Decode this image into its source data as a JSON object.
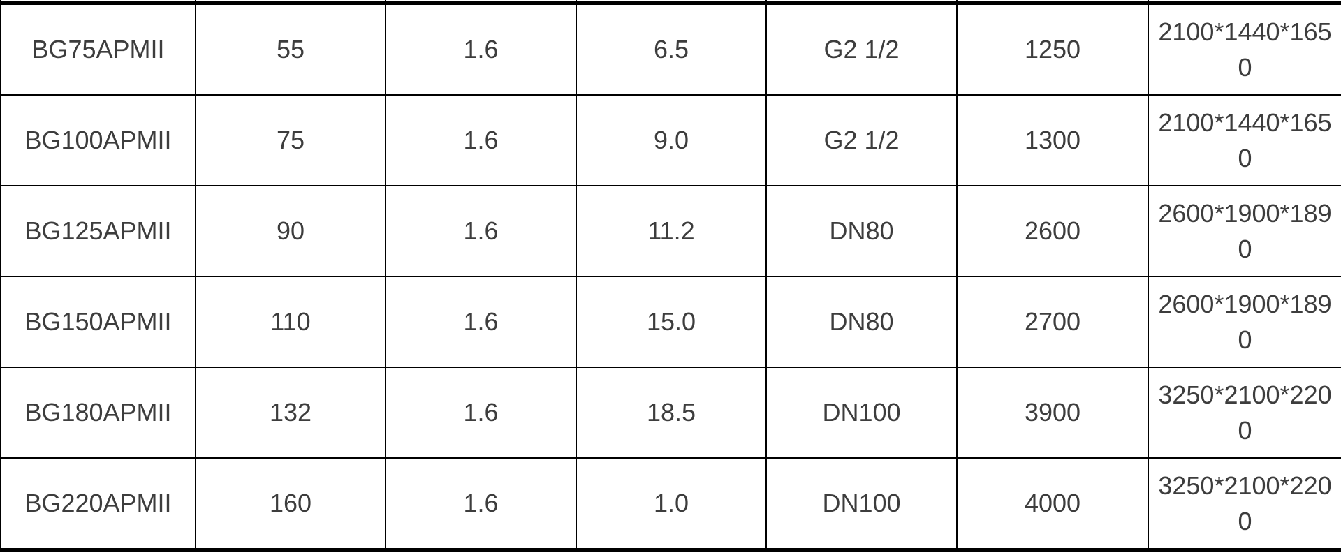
{
  "table": {
    "description": "Product specification table (header row cut off above viewport)",
    "rows": [
      [
        "BG75APMII",
        "55",
        "1.6",
        "6.5",
        "G2 1/2",
        "1250",
        "2100*1440*1650"
      ],
      [
        "BG100APMII",
        "75",
        "1.6",
        "9.0",
        "G2 1/2",
        "1300",
        "2100*1440*1650"
      ],
      [
        "BG125APMII",
        "90",
        "1.6",
        "11.2",
        "DN80",
        "2600",
        "2600*1900*1890"
      ],
      [
        "BG150APMII",
        "110",
        "1.6",
        "15.0",
        "DN80",
        "2700",
        "2600*1900*1890"
      ],
      [
        "BG180APMII",
        "132",
        "1.6",
        "18.5",
        "DN100",
        "3900",
        "3250*2100*2200"
      ],
      [
        "BG220APMII",
        "160",
        "1.6",
        "1.0",
        "DN100",
        "4000",
        "3250*2100*2200"
      ]
    ]
  },
  "colors": {
    "border": "#000000",
    "text": "#3d3d3d",
    "background": "#ffffff"
  }
}
